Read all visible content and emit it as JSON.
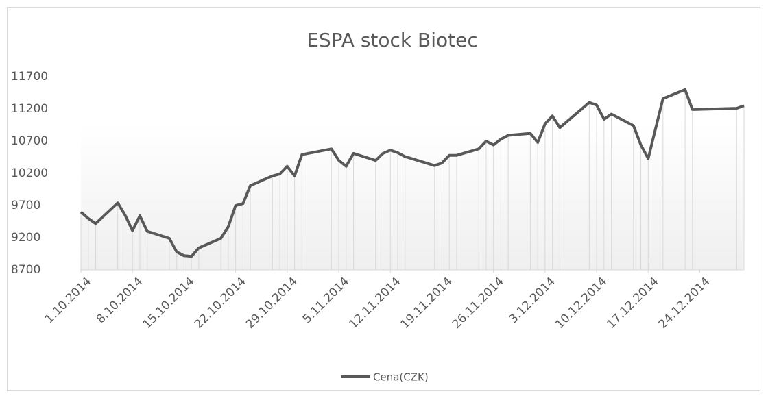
{
  "chart_data": {
    "type": "line",
    "title": "ESPA stock Biotec",
    "x": [
      "2014-10-01",
      "2014-10-02",
      "2014-10-03",
      "2014-10-06",
      "2014-10-07",
      "2014-10-08",
      "2014-10-09",
      "2014-10-10",
      "2014-10-13",
      "2014-10-14",
      "2014-10-15",
      "2014-10-16",
      "2014-10-17",
      "2014-10-20",
      "2014-10-21",
      "2014-10-22",
      "2014-10-23",
      "2014-10-24",
      "2014-10-27",
      "2014-10-28",
      "2014-10-29",
      "2014-10-30",
      "2014-10-31",
      "2014-11-04",
      "2014-11-05",
      "2014-11-06",
      "2014-11-07",
      "2014-11-10",
      "2014-11-11",
      "2014-11-12",
      "2014-11-13",
      "2014-11-14",
      "2014-11-18",
      "2014-11-19",
      "2014-11-20",
      "2014-11-21",
      "2014-11-24",
      "2014-11-25",
      "2014-11-26",
      "2014-11-27",
      "2014-11-28",
      "2014-12-01",
      "2014-12-02",
      "2014-12-03",
      "2014-12-04",
      "2014-12-05",
      "2014-12-09",
      "2014-12-10",
      "2014-12-11",
      "2014-12-12",
      "2014-12-15",
      "2014-12-16",
      "2014-12-17",
      "2014-12-19",
      "2014-12-22",
      "2014-12-23",
      "2014-12-29",
      "2014-12-30"
    ],
    "series": [
      {
        "name": "Cena(CZK)",
        "color": "#595959",
        "values": [
          9600,
          9500,
          9420,
          9740,
          9550,
          9310,
          9540,
          9300,
          9190,
          8980,
          8920,
          8910,
          9040,
          9190,
          9370,
          9700,
          9730,
          10010,
          10160,
          10190,
          10310,
          10160,
          10490,
          10580,
          10400,
          10310,
          10510,
          10400,
          10510,
          10560,
          10520,
          10460,
          10320,
          10360,
          10480,
          10480,
          10580,
          10700,
          10640,
          10730,
          10790,
          10820,
          10680,
          10970,
          11090,
          10910,
          11300,
          11260,
          11040,
          11120,
          10940,
          10640,
          10430,
          11360,
          11500,
          11190,
          11210,
          11250
        ]
      }
    ],
    "xlim": [
      "2014-10-01",
      "2014-12-30"
    ],
    "xticks": [
      {
        "value": "2014-10-01",
        "label": "1.10.2014"
      },
      {
        "value": "2014-10-08",
        "label": "8.10.2014"
      },
      {
        "value": "2014-10-15",
        "label": "15.10.2014"
      },
      {
        "value": "2014-10-22",
        "label": "22.10.2014"
      },
      {
        "value": "2014-10-29",
        "label": "29.10.2014"
      },
      {
        "value": "2014-11-05",
        "label": "5.11.2014"
      },
      {
        "value": "2014-11-12",
        "label": "12.11.2014"
      },
      {
        "value": "2014-11-19",
        "label": "19.11.2014"
      },
      {
        "value": "2014-11-26",
        "label": "26.11.2014"
      },
      {
        "value": "2014-12-03",
        "label": "3.12.2014"
      },
      {
        "value": "2014-12-10",
        "label": "10.12.2014"
      },
      {
        "value": "2014-12-17",
        "label": "17.12.2014"
      },
      {
        "value": "2014-12-24",
        "label": "24.12.2014"
      }
    ],
    "ylim": [
      8700,
      11700
    ],
    "yticks": [
      8700,
      9200,
      9700,
      10200,
      10700,
      11200,
      11700
    ],
    "drop_lines": true
  }
}
